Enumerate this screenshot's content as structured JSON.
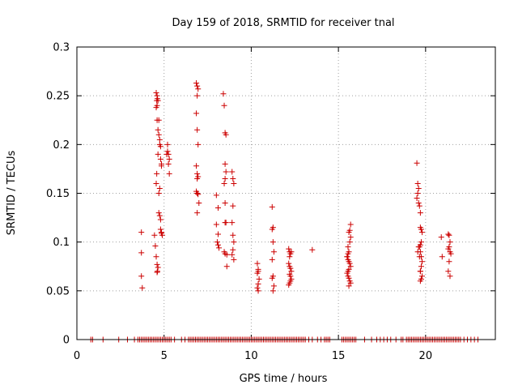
{
  "chart_data": {
    "type": "scatter",
    "title": "Day 159 of 2018, SRMTID for receiver tnal",
    "xlabel": "GPS time / hours",
    "ylabel": "SRMTID / TECUs",
    "xlim": [
      0,
      24
    ],
    "ylim": [
      0,
      0.3
    ],
    "xticks": [
      0,
      5,
      10,
      15,
      20
    ],
    "yticks": [
      0,
      0.05,
      0.1,
      0.15,
      0.2,
      0.25,
      0.3
    ],
    "xtick_labels": [
      "0",
      "5",
      "10",
      "15",
      "20"
    ],
    "ytick_labels": [
      "0",
      "0.05",
      "0.1",
      "0.15",
      "0.2",
      "0.25",
      "0.3"
    ],
    "grid": true,
    "marker": "+",
    "color": "#cc0000",
    "series": [
      {
        "name": "SRMTID",
        "x": [
          3.7,
          3.7,
          3.7,
          3.75,
          4.45,
          4.5,
          4.55,
          4.6,
          4.65,
          4.55,
          4.6,
          4.62,
          4.58,
          4.55,
          4.6,
          4.65,
          4.7,
          4.75,
          4.75,
          4.8,
          4.8,
          4.85,
          4.85,
          4.75,
          4.7,
          4.7,
          4.75,
          4.8,
          4.8,
          4.85,
          4.85,
          4.9,
          4.6,
          4.62,
          4.55,
          4.58,
          4.65,
          4.7,
          4.6,
          4.65,
          5.2,
          5.2,
          5.25,
          5.25,
          5.3,
          5.3,
          5.15,
          6.85,
          6.9,
          6.95,
          6.9,
          6.85,
          6.9,
          6.95,
          6.85,
          6.9,
          6.95,
          6.9,
          6.85,
          6.9,
          6.95,
          7.0,
          6.9,
          8.0,
          8.1,
          8.0,
          8.1,
          8.05,
          8.1,
          8.15,
          8.4,
          8.45,
          8.5,
          8.55,
          8.5,
          8.55,
          8.5,
          8.45,
          8.5,
          8.55,
          8.5,
          8.45,
          8.5,
          8.6,
          8.6,
          8.9,
          8.95,
          9.0,
          8.95,
          8.9,
          8.95,
          9.0,
          8.95,
          8.9,
          9.0,
          10.35,
          10.4,
          10.4,
          10.35,
          10.45,
          10.4,
          10.35,
          10.4,
          11.2,
          11.25,
          11.2,
          11.25,
          11.3,
          11.2,
          11.25,
          11.2,
          11.3,
          11.25,
          12.15,
          12.2,
          12.25,
          12.2,
          12.15,
          12.2,
          12.25,
          12.3,
          12.2,
          12.25,
          12.3,
          12.25,
          12.2,
          12.15,
          12.3,
          13.5,
          15.5,
          15.55,
          15.6,
          15.65,
          15.7,
          15.6,
          15.55,
          15.5,
          15.55,
          15.6,
          15.65,
          15.7,
          15.6,
          15.55,
          15.65,
          15.7,
          15.6,
          15.65,
          15.7,
          15.6,
          15.55,
          15.5,
          19.5,
          19.55,
          19.6,
          19.55,
          19.5,
          19.6,
          19.65,
          19.7,
          19.7,
          19.75,
          19.8,
          19.75,
          19.7,
          19.65,
          19.7,
          19.75,
          19.8,
          19.75,
          19.7,
          19.8,
          19.75,
          19.7,
          19.6,
          19.55,
          19.65,
          19.7,
          20.9,
          20.95,
          21.3,
          21.35,
          21.4,
          21.35,
          21.3,
          21.4,
          21.45,
          21.35,
          21.3,
          21.4
        ],
        "y": [
          0.11,
          0.089,
          0.065,
          0.053,
          0.107,
          0.096,
          0.085,
          0.077,
          0.074,
          0.253,
          0.25,
          0.247,
          0.245,
          0.238,
          0.225,
          0.215,
          0.21,
          0.205,
          0.2,
          0.198,
          0.185,
          0.18,
          0.178,
          0.155,
          0.15,
          0.13,
          0.127,
          0.123,
          0.113,
          0.11,
          0.109,
          0.107,
          0.069,
          0.07,
          0.16,
          0.17,
          0.19,
          0.225,
          0.24,
          0.245,
          0.2,
          0.193,
          0.19,
          0.18,
          0.17,
          0.185,
          0.19,
          0.263,
          0.26,
          0.257,
          0.25,
          0.232,
          0.215,
          0.2,
          0.178,
          0.17,
          0.167,
          0.165,
          0.152,
          0.15,
          0.149,
          0.14,
          0.13,
          0.148,
          0.135,
          0.118,
          0.108,
          0.1,
          0.097,
          0.094,
          0.252,
          0.24,
          0.212,
          0.21,
          0.18,
          0.172,
          0.165,
          0.16,
          0.14,
          0.12,
          0.12,
          0.09,
          0.088,
          0.087,
          0.075,
          0.172,
          0.165,
          0.16,
          0.137,
          0.12,
          0.107,
          0.1,
          0.092,
          0.087,
          0.082,
          0.078,
          0.072,
          0.07,
          0.068,
          0.062,
          0.057,
          0.053,
          0.05,
          0.136,
          0.115,
          0.113,
          0.1,
          0.09,
          0.082,
          0.065,
          0.063,
          0.055,
          0.05,
          0.093,
          0.09,
          0.088,
          0.085,
          0.078,
          0.075,
          0.073,
          0.07,
          0.067,
          0.065,
          0.062,
          0.06,
          0.058,
          0.056,
          0.09,
          0.092,
          0.085,
          0.082,
          0.08,
          0.078,
          0.075,
          0.072,
          0.07,
          0.068,
          0.065,
          0.063,
          0.06,
          0.058,
          0.055,
          0.095,
          0.1,
          0.105,
          0.11,
          0.112,
          0.118,
          0.09,
          0.088,
          0.085,
          0.181,
          0.16,
          0.155,
          0.15,
          0.145,
          0.14,
          0.137,
          0.13,
          0.115,
          0.113,
          0.11,
          0.1,
          0.097,
          0.095,
          0.09,
          0.085,
          0.08,
          0.075,
          0.07,
          0.065,
          0.062,
          0.06,
          0.095,
          0.09,
          0.085,
          0.07,
          0.105,
          0.085,
          0.108,
          0.107,
          0.1,
          0.095,
          0.093,
          0.09,
          0.088,
          0.08,
          0.07,
          0.065
        ],
        "baseline_x": [
          0.8,
          0.9,
          1.5,
          2.4,
          2.9,
          3.3,
          3.5,
          3.6,
          3.7,
          3.8,
          3.9,
          4.0,
          4.1,
          4.2,
          4.3,
          4.4,
          4.5,
          4.6,
          4.7,
          4.8,
          4.9,
          5.0,
          5.1,
          5.2,
          5.3,
          5.4,
          5.6,
          6.0,
          6.2,
          6.4,
          6.5,
          6.6,
          6.7,
          6.8,
          6.9,
          7.0,
          7.1,
          7.2,
          7.3,
          7.4,
          7.5,
          7.6,
          7.7,
          7.8,
          7.9,
          8.0,
          8.1,
          8.2,
          8.3,
          8.4,
          8.5,
          8.6,
          8.7,
          8.8,
          8.9,
          9.0,
          9.1,
          9.2,
          9.3,
          9.4,
          9.5,
          9.6,
          9.7,
          9.8,
          9.9,
          10.0,
          10.1,
          10.2,
          10.3,
          10.4,
          10.5,
          10.6,
          10.7,
          10.8,
          10.9,
          11.0,
          11.1,
          11.2,
          11.3,
          11.4,
          11.5,
          11.6,
          11.7,
          11.8,
          11.9,
          12.0,
          12.1,
          12.2,
          12.3,
          12.4,
          12.5,
          12.6,
          12.7,
          12.8,
          12.9,
          13.0,
          13.1,
          13.3,
          13.5,
          13.8,
          14.0,
          14.2,
          14.3,
          14.4,
          14.5,
          15.2,
          15.3,
          15.4,
          15.5,
          15.6,
          15.7,
          15.8,
          15.9,
          16.0,
          16.5,
          16.9,
          17.2,
          17.4,
          17.6,
          17.8,
          18.0,
          18.3,
          18.6,
          18.7,
          18.9,
          19.0,
          19.1,
          19.2,
          19.3,
          19.4,
          19.5,
          19.6,
          19.7,
          19.8,
          19.9,
          20.0,
          20.1,
          20.2,
          20.3,
          20.4,
          20.5,
          20.6,
          20.7,
          20.8,
          20.9,
          21.0,
          21.1,
          21.2,
          21.3,
          21.4,
          21.5,
          21.6,
          21.7,
          21.8,
          21.9,
          22.0,
          22.2,
          22.4,
          22.6,
          22.8,
          23.0
        ]
      }
    ]
  }
}
